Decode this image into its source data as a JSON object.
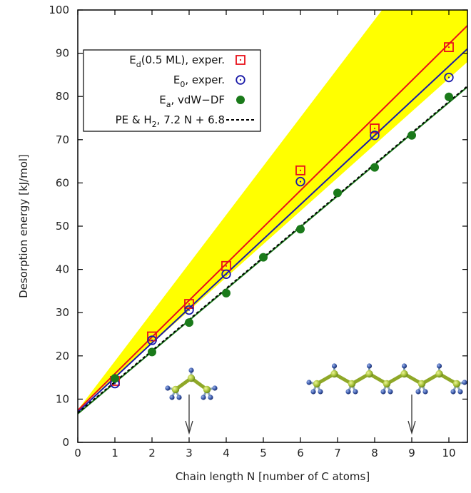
{
  "chart_data": {
    "type": "scatter",
    "xlabel": "Chain length N [number of C atoms]",
    "ylabel": "Desorption energy [kJ/mol]",
    "xlim": [
      0,
      10.5
    ],
    "ylim": [
      0,
      100
    ],
    "xticks": [
      0,
      1,
      2,
      3,
      4,
      5,
      6,
      7,
      8,
      9,
      10
    ],
    "yticks": [
      0,
      10,
      20,
      30,
      40,
      50,
      60,
      70,
      80,
      90,
      100
    ],
    "colors": {
      "ed": "#e8101a",
      "e0": "#1a1aa8",
      "ea": "#1a7a1a",
      "band": "#ffff00",
      "fit_line": "#000000"
    },
    "band": {
      "N": [
        0,
        8.2,
        10.5,
        10.5,
        0
      ],
      "E": [
        7.5,
        100,
        100,
        88,
        7.5
      ]
    },
    "fit_lines": [
      {
        "name": "Ed fit",
        "color_key": "ed",
        "intercept": 7.4,
        "slope": 8.475
      },
      {
        "name": "E0 fit",
        "color_key": "e0",
        "intercept": 7.0,
        "slope": 8.0
      },
      {
        "name": "Ea fit",
        "color_key": "ea",
        "intercept": 6.6,
        "slope": 7.2
      },
      {
        "name": "PE & H2 fit",
        "color_key": "fit_line",
        "intercept": 6.8,
        "slope": 7.2,
        "dashed": true
      }
    ],
    "series": [
      {
        "name": "Ed(0.5 ML), exper.",
        "marker": "square",
        "color_key": "ed",
        "x": [
          1,
          2,
          3,
          4,
          6,
          8,
          10
        ],
        "y": [
          14.2,
          24.5,
          32.0,
          40.8,
          62.9,
          72.6,
          91.4
        ]
      },
      {
        "name": "E0, exper.",
        "marker": "circle-open",
        "color_key": "e0",
        "x": [
          1,
          2,
          3,
          4,
          6,
          8,
          10
        ],
        "y": [
          13.6,
          23.6,
          30.6,
          38.9,
          60.3,
          71.0,
          84.4
        ]
      },
      {
        "name": "Ea, vdW-DF",
        "marker": "circle-filled",
        "color_key": "ea",
        "x": [
          1,
          2,
          3,
          4,
          5,
          6,
          7,
          8,
          9,
          10
        ],
        "y": [
          14.8,
          20.9,
          27.7,
          34.5,
          42.8,
          49.3,
          57.7,
          63.6,
          71.0,
          79.9
        ]
      }
    ],
    "legend": {
      "position": "upper-left",
      "entries": [
        {
          "main": "E",
          "sub": "d",
          "rest": "(0.5 ML), exper.",
          "marker": "square",
          "color_key": "ed"
        },
        {
          "main": "E",
          "sub": "0",
          "rest": ", exper.",
          "marker": "circle-open",
          "color_key": "e0"
        },
        {
          "main": "E",
          "sub": "a",
          "rest": ", vdW−DF",
          "marker": "circle-filled",
          "color_key": "ea"
        },
        {
          "main": "PE & H",
          "sub": "2",
          "rest": ", 7.2 N + 6.8",
          "marker": "dashed-line",
          "color_key": "fit_line"
        }
      ]
    },
    "annotations": [
      {
        "name": "propane-molecule",
        "carbons": 3,
        "arrow_x": 3
      },
      {
        "name": "nonane-molecule",
        "carbons": 9,
        "arrow_x": 9
      }
    ]
  }
}
